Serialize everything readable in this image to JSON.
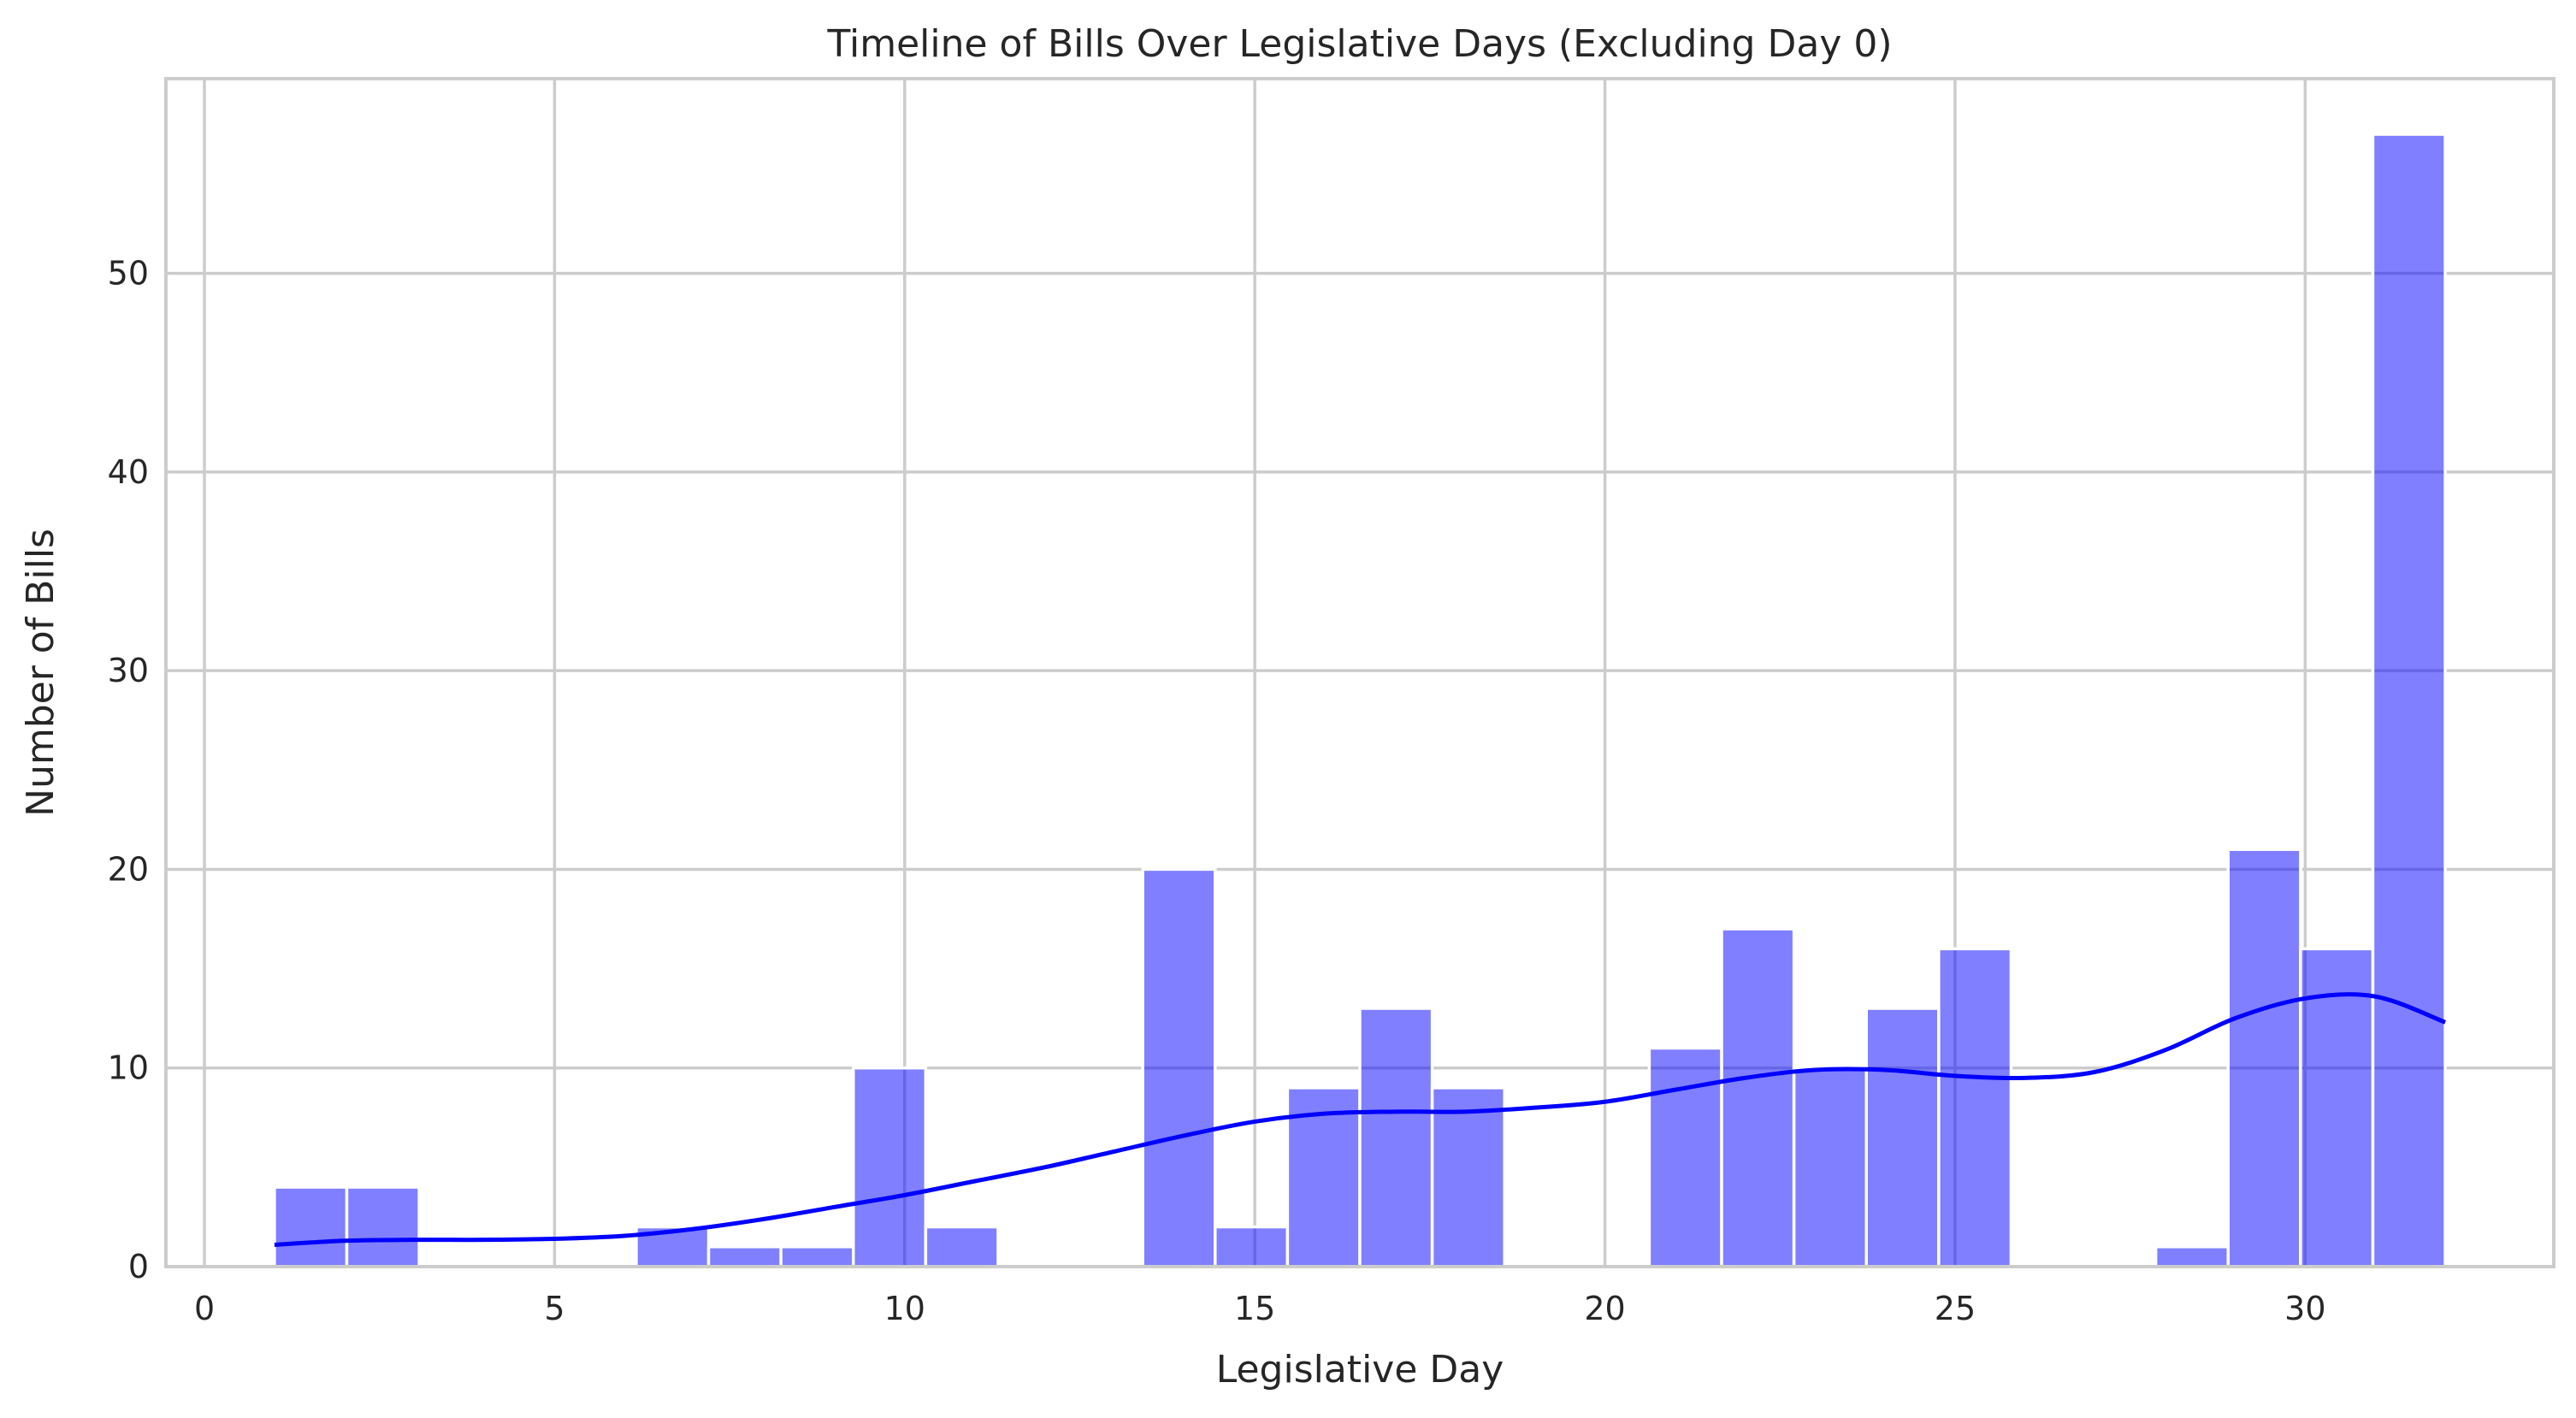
{
  "chart_data": {
    "type": "bar",
    "title": "Timeline of Bills Over Legislative Days (Excluding Day 0)",
    "xlabel": "Legislative Day",
    "ylabel": "Number of Bills",
    "xlim": [
      -0.55,
      33.55
    ],
    "ylim": [
      0,
      59.8
    ],
    "xticks": [
      0,
      5,
      10,
      15,
      20,
      25,
      30
    ],
    "xtick_labels": [
      "0",
      "5",
      "10",
      "15",
      "20",
      "25",
      "30"
    ],
    "yticks": [
      0,
      10,
      20,
      30,
      40,
      50
    ],
    "ytick_labels": [
      "0",
      "10",
      "20",
      "30",
      "40",
      "50"
    ],
    "grid": true,
    "bin_edges": [
      1,
      2.0333,
      3.0667,
      4.1,
      5.1333,
      6.1667,
      7.2,
      8.2333,
      9.2667,
      10.3,
      11.3333,
      12.3667,
      13.4,
      14.4333,
      15.4667,
      16.5,
      17.5333,
      18.5667,
      19.6,
      20.6333,
      21.6667,
      22.7,
      23.7333,
      24.7667,
      25.8,
      26.8333,
      27.8667,
      28.9,
      29.9333,
      30.9667,
      32
    ],
    "counts": [
      4,
      4,
      0,
      0,
      0,
      2,
      1,
      1,
      10,
      2,
      0,
      0,
      20,
      2,
      9,
      13,
      9,
      0,
      0,
      11,
      17,
      10,
      13,
      16,
      0,
      0,
      1,
      21,
      16,
      57
    ],
    "kde": {
      "x": [
        1,
        2,
        3,
        4,
        5,
        6,
        7,
        8,
        9,
        10,
        11,
        12,
        13,
        14,
        15,
        16,
        17,
        18,
        19,
        20,
        21,
        22,
        23,
        24,
        25,
        26,
        27,
        28,
        29,
        30,
        31,
        32
      ],
      "y": [
        1.1,
        1.3,
        1.35,
        1.35,
        1.4,
        1.55,
        1.9,
        2.4,
        3.0,
        3.6,
        4.3,
        5.0,
        5.8,
        6.6,
        7.3,
        7.7,
        7.8,
        7.8,
        8.0,
        8.3,
        8.9,
        9.5,
        9.9,
        9.9,
        9.6,
        9.5,
        9.8,
        10.9,
        12.5,
        13.5,
        13.6,
        12.3
      ]
    },
    "colors": {
      "bar_fill": "#0000ff",
      "bar_opacity": 0.5,
      "kde_line": "#0000ff",
      "grid": "#cccccc",
      "axis_frame": "#cccccc"
    }
  }
}
